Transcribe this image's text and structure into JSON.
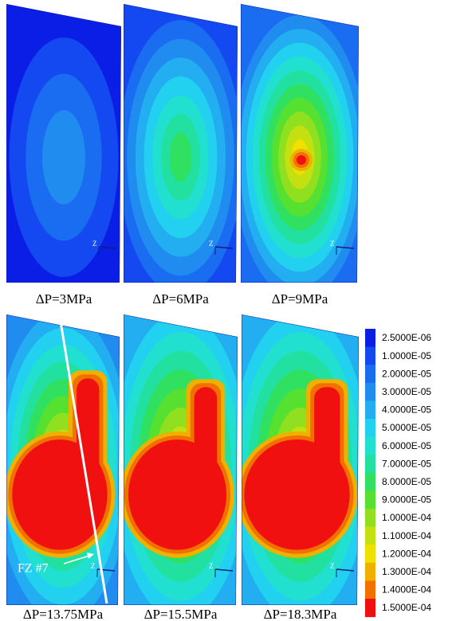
{
  "panels": [
    {
      "label": "ΔP=3MPa",
      "axis_label": "Z"
    },
    {
      "label": "ΔP=6MPa",
      "axis_label": "Z"
    },
    {
      "label": "ΔP=9MPa",
      "axis_label": "Z"
    },
    {
      "label": "ΔP=13.75MPa",
      "axis_label": "Z"
    },
    {
      "label": "ΔP=15.5MPa",
      "axis_label": "Z"
    },
    {
      "label": "ΔP=18.3MPa",
      "axis_label": "Z"
    }
  ],
  "annotation": "FZ #7",
  "legend": [
    {
      "label": "2.5000E-06",
      "color": "#0a1ee6"
    },
    {
      "label": "1.0000E-05",
      "color": "#1448f0"
    },
    {
      "label": "2.0000E-05",
      "color": "#1a6cf0"
    },
    {
      "label": "3.0000E-05",
      "color": "#208cf0"
    },
    {
      "label": "4.0000E-05",
      "color": "#22aef0"
    },
    {
      "label": "5.0000E-05",
      "color": "#22d0f0"
    },
    {
      "label": "6.0000E-05",
      "color": "#22e0d0"
    },
    {
      "label": "7.0000E-05",
      "color": "#22e0a0"
    },
    {
      "label": "8.0000E-05",
      "color": "#30e060"
    },
    {
      "label": "9.0000E-05",
      "color": "#56e030"
    },
    {
      "label": "1.0000E-04",
      "color": "#90e020"
    },
    {
      "label": "1.1000E-04",
      "color": "#c4e010"
    },
    {
      "label": "1.2000E-04",
      "color": "#f0e000"
    },
    {
      "label": "1.3000E-04",
      "color": "#f0b000"
    },
    {
      "label": "1.4000E-04",
      "color": "#f07000"
    },
    {
      "label": "1.5000E-04",
      "color": "#f01010"
    }
  ]
}
